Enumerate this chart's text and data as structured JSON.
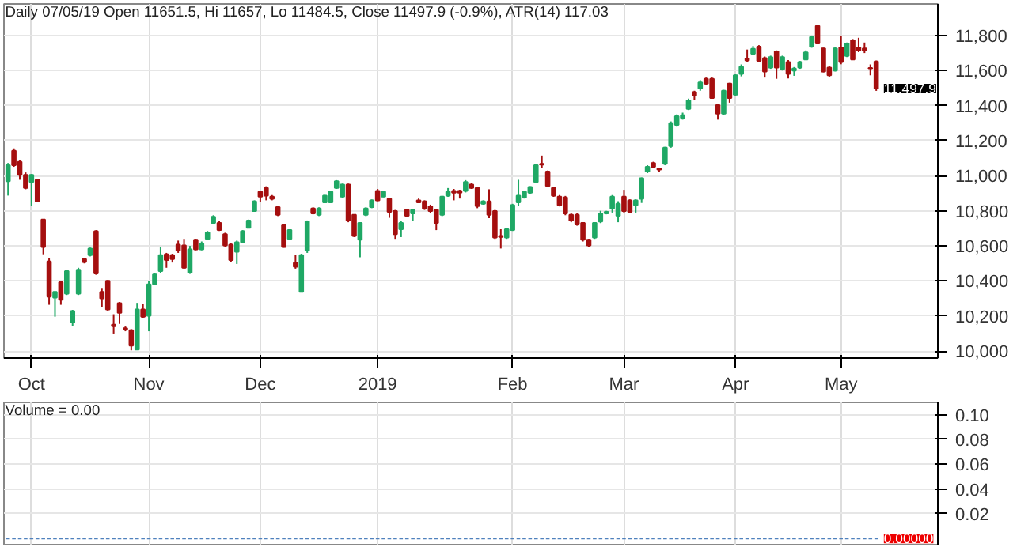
{
  "chart_data": [
    {
      "type": "candlestick",
      "title": "Daily 07/05/19 Open 11651.5, Hi 11657, Lo 11484.5, Close 11497.9 (-0.9%), ATR(14) 117.03",
      "categories": [
        null,
        null,
        null,
        null,
        "Oct",
        null,
        null,
        null,
        null,
        null,
        null,
        null,
        null,
        null,
        null,
        null,
        null,
        null,
        null,
        null,
        null,
        null,
        null,
        null,
        "Nov",
        null,
        null,
        null,
        null,
        null,
        null,
        null,
        null,
        null,
        null,
        null,
        null,
        null,
        null,
        null,
        null,
        null,
        null,
        "Dec",
        null,
        null,
        null,
        null,
        null,
        null,
        null,
        null,
        null,
        null,
        null,
        null,
        null,
        null,
        null,
        null,
        null,
        null,
        null,
        "2019",
        null,
        null,
        null,
        null,
        null,
        null,
        null,
        null,
        null,
        null,
        null,
        null,
        null,
        null,
        null,
        null,
        null,
        null,
        null,
        null,
        null,
        null,
        "Feb",
        null,
        null,
        null,
        null,
        null,
        null,
        null,
        null,
        null,
        null,
        null,
        null,
        null,
        null,
        null,
        null,
        null,
        null,
        "Mar",
        null,
        null,
        null,
        null,
        null,
        null,
        null,
        null,
        null,
        null,
        null,
        null,
        null,
        null,
        null,
        null,
        null,
        null,
        "Apr",
        null,
        null,
        null,
        null,
        null,
        null,
        null,
        null,
        null,
        null,
        null,
        null,
        null,
        null,
        null,
        null,
        null,
        "May",
        null,
        null,
        null,
        null,
        null,
        null
      ],
      "ohlc": [
        [
          10969,
          11073,
          10887,
          11060
        ],
        [
          11142,
          11156,
          11051,
          11060
        ],
        [
          11079,
          11087,
          10977,
          11005
        ],
        [
          11005,
          11019,
          10923,
          10931
        ],
        [
          10964,
          11010,
          10827,
          11005
        ],
        [
          10977,
          10980,
          10850,
          10854
        ],
        [
          10750,
          10753,
          10552,
          10593
        ],
        [
          10511,
          10530,
          10264,
          10311
        ],
        [
          10305,
          10340,
          10196,
          10338
        ],
        [
          10393,
          10395,
          10264,
          10292
        ],
        [
          10327,
          10465,
          10320,
          10456
        ],
        [
          10163,
          10235,
          10141,
          10228
        ],
        [
          10327,
          10475,
          10320,
          10464
        ],
        [
          10525,
          10530,
          10500,
          10508
        ],
        [
          10547,
          10590,
          10540,
          10585
        ],
        [
          10684,
          10690,
          10435,
          10443
        ],
        [
          10338,
          10360,
          10250,
          10300
        ],
        [
          10401,
          10405,
          10230,
          10237
        ],
        [
          10150,
          10210,
          10100,
          10142
        ],
        [
          10273,
          10280,
          10155,
          10218
        ],
        [
          10130,
          10140,
          10113,
          10125
        ],
        [
          10119,
          10125,
          10004,
          10031
        ],
        [
          10009,
          10275,
          10005,
          10237
        ],
        [
          10237,
          10270,
          10190,
          10196
        ],
        [
          10201,
          10400,
          10113,
          10380
        ],
        [
          10382,
          10445,
          10380,
          10437
        ],
        [
          10456,
          10593,
          10443,
          10547
        ],
        [
          10552,
          10560,
          10475,
          10519
        ],
        [
          10547,
          10555,
          10505,
          10525
        ],
        [
          10607,
          10630,
          10560,
          10574
        ],
        [
          10602,
          10640,
          10470,
          10475
        ],
        [
          10448,
          10600,
          10440,
          10580
        ],
        [
          10635,
          10640,
          10575,
          10580
        ],
        [
          10580,
          10625,
          10575,
          10613
        ],
        [
          10640,
          10685,
          10635,
          10676
        ],
        [
          10731,
          10775,
          10725,
          10766
        ],
        [
          10731,
          10740,
          10685,
          10690
        ],
        [
          10667,
          10675,
          10595,
          10602
        ],
        [
          10607,
          10615,
          10510,
          10519
        ],
        [
          10566,
          10630,
          10497,
          10621
        ],
        [
          10621,
          10690,
          10615,
          10684
        ],
        [
          10703,
          10750,
          10700,
          10744
        ],
        [
          10799,
          10860,
          10795,
          10854
        ],
        [
          10909,
          10915,
          10850,
          10881
        ],
        [
          10931,
          10940,
          10860,
          10887
        ],
        [
          10881,
          10890,
          10860,
          10868
        ],
        [
          10821,
          10830,
          10770,
          10777
        ],
        [
          10717,
          10720,
          10590,
          10593
        ],
        [
          10640,
          10695,
          10635,
          10690
        ],
        [
          10503,
          10550,
          10470,
          10481
        ],
        [
          10338,
          10555,
          10338,
          10547
        ],
        [
          10574,
          10745,
          10560,
          10739
        ],
        [
          10813,
          10820,
          10780,
          10785
        ],
        [
          10777,
          10820,
          10770,
          10813
        ],
        [
          10848,
          10890,
          10845,
          10887
        ],
        [
          10848,
          10915,
          10845,
          10909
        ],
        [
          10931,
          10975,
          10925,
          10969
        ],
        [
          10881,
          10955,
          10875,
          10950
        ],
        [
          10950,
          10955,
          10735,
          10744
        ],
        [
          10777,
          10780,
          10650,
          10657
        ],
        [
          10635,
          10735,
          10535,
          10731
        ],
        [
          10777,
          10820,
          10770,
          10813
        ],
        [
          10821,
          10865,
          10815,
          10859
        ],
        [
          10914,
          10925,
          10855,
          10859
        ],
        [
          10881,
          10912,
          10878,
          10909
        ],
        [
          10868,
          10875,
          10760,
          10794
        ],
        [
          10799,
          10805,
          10640,
          10667
        ],
        [
          10695,
          10740,
          10650,
          10731
        ],
        [
          10805,
          10810,
          10765,
          10772
        ],
        [
          10785,
          10810,
          10740,
          10805
        ],
        [
          10859,
          10870,
          10845,
          10848
        ],
        [
          10854,
          10860,
          10805,
          10813
        ],
        [
          10826,
          10835,
          10785,
          10799
        ],
        [
          10805,
          10810,
          10690,
          10731
        ],
        [
          10777,
          10885,
          10770,
          10881
        ],
        [
          10887,
          10930,
          10880,
          10909
        ],
        [
          10914,
          10925,
          10860,
          10903
        ],
        [
          10914,
          10920,
          10870,
          10903
        ],
        [
          10914,
          10975,
          10905,
          10964
        ],
        [
          10950,
          10960,
          10925,
          10931
        ],
        [
          10931,
          10935,
          10815,
          10827
        ],
        [
          10840,
          10860,
          10835,
          10854
        ],
        [
          10854,
          10923,
          10758,
          10777
        ],
        [
          10799,
          10805,
          10640,
          10648
        ],
        [
          10657,
          10695,
          10585,
          10651
        ],
        [
          10648,
          10700,
          10640,
          10695
        ],
        [
          10690,
          10840,
          10685,
          10832
        ],
        [
          10848,
          10977,
          10827,
          10887
        ],
        [
          10876,
          10915,
          10870,
          10909
        ],
        [
          10903,
          10940,
          10898,
          10936
        ],
        [
          10964,
          11065,
          10960,
          11060
        ],
        [
          11068,
          11115,
          11046,
          11063
        ],
        [
          11024,
          11030,
          10935,
          10942
        ],
        [
          10931,
          10935,
          10880,
          10887
        ],
        [
          10881,
          10890,
          10825,
          10832
        ],
        [
          10876,
          10885,
          10775,
          10785
        ],
        [
          10777,
          10785,
          10735,
          10744
        ],
        [
          10777,
          10785,
          10715,
          10722
        ],
        [
          10731,
          10735,
          10625,
          10635
        ],
        [
          10635,
          10640,
          10592,
          10602
        ],
        [
          10648,
          10735,
          10640,
          10731
        ],
        [
          10739,
          10800,
          10730,
          10785
        ],
        [
          10785,
          10800,
          10780,
          10794
        ],
        [
          10813,
          10890,
          10790,
          10881
        ],
        [
          10772,
          10855,
          10735,
          10840
        ],
        [
          10881,
          10920,
          10790,
          10799
        ],
        [
          10859,
          10865,
          10785,
          10794
        ],
        [
          10832,
          10865,
          10790,
          10859
        ],
        [
          10868,
          10990,
          10845,
          10986
        ],
        [
          11024,
          11060,
          11015,
          11051
        ],
        [
          11073,
          11080,
          11045,
          11051
        ],
        [
          11042,
          11046,
          11020,
          11035
        ],
        [
          11068,
          11165,
          11060,
          11161
        ],
        [
          11170,
          11310,
          11160,
          11300
        ],
        [
          11290,
          11350,
          11280,
          11340
        ],
        [
          11330,
          11360,
          11320,
          11345
        ],
        [
          11381,
          11440,
          11375,
          11430
        ],
        [
          11477,
          11485,
          11430,
          11458
        ],
        [
          11499,
          11545,
          11485,
          11532
        ],
        [
          11553,
          11560,
          11520,
          11526
        ],
        [
          11553,
          11560,
          11440,
          11444
        ],
        [
          11403,
          11410,
          11320,
          11354
        ],
        [
          11354,
          11490,
          11345,
          11485
        ],
        [
          11526,
          11530,
          11417,
          11444
        ],
        [
          11463,
          11580,
          11455,
          11573
        ],
        [
          11581,
          11635,
          11567,
          11622
        ],
        [
          11669,
          11720,
          11650,
          11658
        ],
        [
          11696,
          11740,
          11690,
          11724
        ],
        [
          11737,
          11745,
          11650,
          11655
        ],
        [
          11671,
          11680,
          11560,
          11595
        ],
        [
          11617,
          11685,
          11610,
          11677
        ],
        [
          11710,
          11715,
          11553,
          11617
        ],
        [
          11608,
          11685,
          11600,
          11677
        ],
        [
          11649,
          11660,
          11555,
          11581
        ],
        [
          11600,
          11620,
          11570,
          11611
        ],
        [
          11617,
          11655,
          11610,
          11649
        ],
        [
          11663,
          11715,
          11660,
          11704
        ],
        [
          11737,
          11800,
          11730,
          11792
        ],
        [
          11855,
          11860,
          11750,
          11754
        ],
        [
          11726,
          11730,
          11590,
          11595
        ],
        [
          11617,
          11625,
          11565,
          11573
        ],
        [
          11600,
          11735,
          11595,
          11726
        ],
        [
          11732,
          11800,
          11636,
          11649
        ],
        [
          11683,
          11760,
          11677,
          11754
        ],
        [
          11773,
          11780,
          11660,
          11663
        ],
        [
          11732,
          11787,
          11705,
          11715
        ],
        [
          11726,
          11760,
          11700,
          11715
        ],
        [
          11615,
          11635,
          11573,
          11612
        ],
        [
          11651.5,
          11657,
          11484.5,
          11497.9
        ]
      ],
      "colors": [
        "#1fa865",
        "#a50f0f",
        "#a50f0f",
        "#a50f0f",
        "#1fa865",
        "#a50f0f",
        "#a50f0f",
        "#a50f0f",
        "#1fa865",
        "#a50f0f",
        "#1fa865",
        "#1fa865",
        "#1fa865",
        "#a50f0f",
        "#1fa865",
        "#a50f0f",
        "#a50f0f",
        "#a50f0f",
        "#a50f0f",
        "#a50f0f",
        "#a50f0f",
        "#a50f0f",
        "#1fa865",
        "#a50f0f",
        "#1fa865",
        "#1fa865",
        "#1fa865",
        "#a50f0f",
        "#a50f0f",
        "#a50f0f",
        "#a50f0f",
        "#1fa865",
        "#a50f0f",
        "#1fa865",
        "#1fa865",
        "#1fa865",
        "#a50f0f",
        "#a50f0f",
        "#a50f0f",
        "#1fa865",
        "#1fa865",
        "#1fa865",
        "#1fa865",
        "#a50f0f",
        "#a50f0f",
        "#a50f0f",
        "#a50f0f",
        "#a50f0f",
        "#1fa865",
        "#a50f0f",
        "#1fa865",
        "#1fa865",
        "#a50f0f",
        "#1fa865",
        "#1fa865",
        "#1fa865",
        "#1fa865",
        "#1fa865",
        "#a50f0f",
        "#a50f0f",
        "#1fa865",
        "#1fa865",
        "#1fa865",
        "#a50f0f",
        "#1fa865",
        "#a50f0f",
        "#a50f0f",
        "#1fa865",
        "#a50f0f",
        "#1fa865",
        "#a50f0f",
        "#a50f0f",
        "#a50f0f",
        "#a50f0f",
        "#1fa865",
        "#1fa865",
        "#a50f0f",
        "#a50f0f",
        "#1fa865",
        "#a50f0f",
        "#a50f0f",
        "#1fa865",
        "#a50f0f",
        "#a50f0f",
        "#a50f0f",
        "#1fa865",
        "#1fa865",
        "#1fa865",
        "#1fa865",
        "#1fa865",
        "#1fa865",
        "#a50f0f",
        "#a50f0f",
        "#a50f0f",
        "#a50f0f",
        "#a50f0f",
        "#a50f0f",
        "#a50f0f",
        "#a50f0f",
        "#a50f0f",
        "#1fa865",
        "#1fa865",
        "#1fa865",
        "#1fa865",
        "#1fa865",
        "#a50f0f",
        "#a50f0f",
        "#1fa865",
        "#1fa865",
        "#1fa865",
        "#a50f0f",
        "#a50f0f",
        "#1fa865",
        "#1fa865",
        "#1fa865",
        "#1fa865",
        "#1fa865",
        "#a50f0f",
        "#1fa865",
        "#a50f0f",
        "#a50f0f",
        "#a50f0f",
        "#1fa865",
        "#a50f0f",
        "#1fa865",
        "#1fa865",
        "#a50f0f",
        "#1fa865",
        "#a50f0f",
        "#a50f0f",
        "#1fa865",
        "#a50f0f",
        "#1fa865",
        "#a50f0f",
        "#1fa865",
        "#1fa865",
        "#1fa865",
        "#1fa865",
        "#a50f0f",
        "#a50f0f",
        "#a50f0f",
        "#1fa865",
        "#a50f0f",
        "#1fa865",
        "#a50f0f",
        "#a50f0f",
        "#a50f0f",
        "#a50f0f",
        "#a50f0f"
      ],
      "ylim": [
        9960,
        11980
      ],
      "yticks": [
        {
          "value": 10000,
          "label": "10,000"
        },
        {
          "value": 10200,
          "label": "10,200"
        },
        {
          "value": 10400,
          "label": "10,400"
        },
        {
          "value": 10600,
          "label": "10,600"
        },
        {
          "value": 10800,
          "label": "10,800"
        },
        {
          "value": 11000,
          "label": "11,000"
        },
        {
          "value": 11200,
          "label": "11,200"
        },
        {
          "value": 11400,
          "label": "11,400"
        },
        {
          "value": 11600,
          "label": "11,600"
        },
        {
          "value": 11800,
          "label": "11,800"
        }
      ],
      "annotations": [
        "11,497.9"
      ],
      "grid": true
    },
    {
      "type": "bar",
      "title": "Volume = 0.00",
      "categories": [
        null,
        null,
        null,
        null,
        null,
        null,
        null,
        null,
        null,
        null,
        null,
        null,
        null,
        null,
        null,
        null,
        null,
        null,
        null,
        null,
        null,
        null,
        null,
        null,
        null,
        null,
        null,
        null,
        null,
        null,
        null,
        null,
        null,
        null,
        null,
        null,
        null,
        null,
        null,
        null,
        null,
        null,
        null,
        null,
        null,
        null,
        null,
        null,
        null,
        null,
        null,
        null,
        null,
        null,
        null,
        null,
        null,
        null,
        null,
        null,
        null,
        null,
        null,
        null,
        null,
        null,
        null,
        null,
        null,
        null,
        null,
        null,
        null,
        null,
        null,
        null,
        null,
        null,
        null,
        null,
        null,
        null,
        null,
        null,
        null,
        null,
        null,
        null,
        null,
        null,
        null,
        null,
        null,
        null,
        null,
        null,
        null,
        null,
        null,
        null,
        null,
        null,
        null,
        null,
        null,
        null,
        null,
        null,
        null,
        null,
        null,
        null,
        null,
        null,
        null,
        null,
        null,
        null,
        null,
        null,
        null,
        null,
        null,
        null,
        null,
        null,
        null,
        null,
        null,
        null,
        null,
        null,
        null,
        null,
        null,
        null,
        null,
        null,
        null,
        null,
        null,
        null,
        null,
        null,
        null,
        null,
        null,
        null,
        null
      ],
      "values": [
        0,
        0,
        0,
        0,
        0,
        0,
        0,
        0,
        0,
        0,
        0,
        0,
        0,
        0,
        0,
        0,
        0,
        0,
        0,
        0,
        0,
        0,
        0,
        0,
        0,
        0,
        0,
        0,
        0,
        0,
        0,
        0,
        0,
        0,
        0,
        0,
        0,
        0,
        0,
        0,
        0,
        0,
        0,
        0,
        0,
        0,
        0,
        0,
        0,
        0,
        0,
        0,
        0,
        0,
        0,
        0,
        0,
        0,
        0,
        0,
        0,
        0,
        0,
        0,
        0,
        0,
        0,
        0,
        0,
        0,
        0,
        0,
        0,
        0,
        0,
        0,
        0,
        0,
        0,
        0,
        0,
        0,
        0,
        0,
        0,
        0,
        0,
        0,
        0,
        0,
        0,
        0,
        0,
        0,
        0,
        0,
        0,
        0,
        0,
        0,
        0,
        0,
        0,
        0,
        0,
        0,
        0,
        0,
        0,
        0,
        0,
        0,
        0,
        0,
        0,
        0,
        0,
        0,
        0,
        0,
        0,
        0,
        0,
        0,
        0,
        0,
        0,
        0,
        0,
        0,
        0,
        0,
        0,
        0,
        0,
        0,
        0,
        0,
        0,
        0,
        0,
        0,
        0,
        0,
        0,
        0,
        0,
        0,
        0
      ],
      "color": "#4f81bd",
      "ylim": [
        -0.005,
        0.11
      ],
      "yticks": [
        {
          "value": 0.02,
          "label": "0.02"
        },
        {
          "value": 0.04,
          "label": "0.04"
        },
        {
          "value": 0.06,
          "label": "0.06"
        },
        {
          "value": 0.08,
          "label": "0.08"
        },
        {
          "value": 0.1,
          "label": "0.10"
        }
      ],
      "annotations": [
        "0.00000"
      ],
      "tick_labels": "y",
      "grid": true
    }
  ]
}
